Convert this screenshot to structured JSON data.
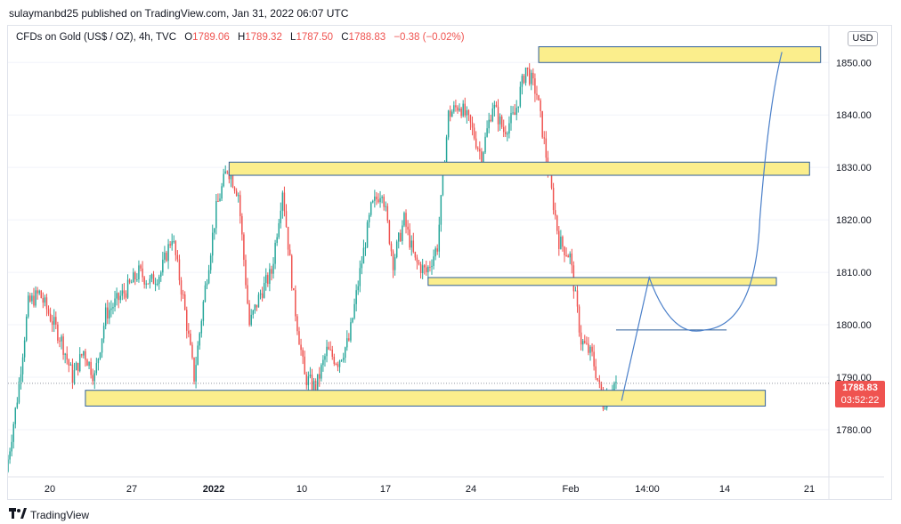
{
  "header": {
    "publisher_line": "sulaymanbd25 published on TradingView.com, Jan 31, 2022 06:07 UTC"
  },
  "legend": {
    "symbol": "CFDs on Gold (US$ / OZ), 4h, TVC",
    "open_label": "O",
    "open": "1789.06",
    "high_label": "H",
    "high": "1789.32",
    "low_label": "L",
    "low": "1787.50",
    "close_label": "C",
    "close": "1788.83",
    "change": "−0.38 (−0.02%)"
  },
  "currency": "USD",
  "price_tag": {
    "price": "1788.83",
    "countdown": "03:52:22",
    "color": "#ef5350"
  },
  "footer": {
    "brand": "TradingView",
    "logo": "tradingview-logo-icon"
  },
  "colors": {
    "up": "#26a69a",
    "down": "#ef5350",
    "zone_fill": "#fbee8c",
    "zone_stroke": "#2f5f9b",
    "projection": "#4a7fc9"
  },
  "chart_data": {
    "type": "candlestick",
    "instrument": "CFDs on Gold (US$ / OZ)",
    "timeframe": "4h",
    "y_axis": {
      "ticks": [
        1780,
        1790,
        1800,
        1810,
        1820,
        1830,
        1840,
        1850
      ],
      "tick_labels": [
        "1780.00",
        "1790.00",
        "1800.00",
        "1810.00",
        "1820.00",
        "1830.00",
        "1840.00",
        "1850.00"
      ],
      "range": [
        1771,
        1857
      ]
    },
    "x_axis": {
      "tick_labels": [
        "20",
        "27",
        "2022",
        "10",
        "17",
        "24",
        "Feb",
        "14:00",
        "14",
        "21"
      ]
    },
    "path": [
      [
        "2021-12-15 00:00",
        1772
      ],
      [
        "2021-12-16 00:00",
        1786
      ],
      [
        "2021-12-17 00:00",
        1804
      ],
      [
        "2021-12-18 00:00",
        1806
      ],
      [
        "2021-12-20 00:00",
        1797
      ],
      [
        "2021-12-21 00:00",
        1790
      ],
      [
        "2021-12-22 00:00",
        1795
      ],
      [
        "2021-12-23 00:00",
        1790
      ],
      [
        "2021-12-24 00:00",
        1802
      ],
      [
        "2021-12-26 00:00",
        1807
      ],
      [
        "2021-12-27 00:00",
        1810
      ],
      [
        "2021-12-28 00:00",
        1808
      ],
      [
        "2021-12-29 00:00",
        1810
      ],
      [
        "2021-12-30 00:00",
        1817
      ],
      [
        "2021-12-31 00:00",
        1805
      ],
      [
        "2022-01-01 00:00",
        1790
      ],
      [
        "2022-01-02 00:00",
        1807
      ],
      [
        "2022-01-03 00:00",
        1822
      ],
      [
        "2022-01-04 00:00",
        1830
      ],
      [
        "2022-01-05 00:00",
        1825
      ],
      [
        "2022-01-06 00:00",
        1800
      ],
      [
        "2022-01-07 00:00",
        1806
      ],
      [
        "2022-01-08 00:00",
        1810
      ],
      [
        "2022-01-09 00:00",
        1826
      ],
      [
        "2022-01-10 00:00",
        1805
      ],
      [
        "2022-01-11 00:00",
        1790
      ],
      [
        "2022-01-12 00:00",
        1788
      ],
      [
        "2022-01-13 00:00",
        1795
      ],
      [
        "2022-01-14 00:00",
        1793
      ],
      [
        "2022-01-15 00:00",
        1797
      ],
      [
        "2022-01-16 00:00",
        1810
      ],
      [
        "2022-01-17 00:00",
        1822
      ],
      [
        "2022-01-18 00:00",
        1826
      ],
      [
        "2022-01-19 00:00",
        1812
      ],
      [
        "2022-01-20 00:00",
        1820
      ],
      [
        "2022-01-21 00:00",
        1812
      ],
      [
        "2022-01-22 00:00",
        1810
      ],
      [
        "2022-01-23 00:00",
        1815
      ],
      [
        "2022-01-24 00:00",
        1840
      ],
      [
        "2022-01-25 00:00",
        1842
      ],
      [
        "2022-01-26 00:00",
        1838
      ],
      [
        "2022-01-27 00:00",
        1832
      ],
      [
        "2022-01-28 00:00",
        1842
      ],
      [
        "2022-01-29 00:00",
        1837
      ],
      [
        "2022-01-30 00:00",
        1840
      ],
      [
        "2022-01-31 00:00",
        1849
      ],
      [
        "2022-02-01 00:00",
        1844
      ],
      [
        "2022-02-02 00:00",
        1830
      ],
      [
        "2022-02-03 00:00",
        1816
      ],
      [
        "2022-02-04 00:00",
        1813
      ],
      [
        "2022-02-05 00:00",
        1797
      ],
      [
        "2022-02-06 00:00",
        1794
      ],
      [
        "2022-02-07 00:00",
        1785
      ],
      [
        "2022-02-08 00:00",
        1788.83
      ]
    ],
    "zones": [
      {
        "from": "2022-02-01 00:00",
        "to": "2022-02-26 12:00",
        "low": 1850,
        "high": 1853
      },
      {
        "from": "2022-01-04 00:00",
        "to": "2022-02-25 12:00",
        "low": 1828.5,
        "high": 1831
      },
      {
        "from": "2022-01-22 00:00",
        "to": "2022-02-22 12:00",
        "low": 1807.5,
        "high": 1809
      },
      {
        "from": "2021-12-22 00:00",
        "to": "2022-02-21 12:00",
        "low": 1784.5,
        "high": 1787.5
      }
    ],
    "horizontal_line": {
      "from": "2022-02-08 00:00",
      "to": "2022-02-18 00:00",
      "price": 1799
    },
    "projection": [
      [
        "2022-02-08 12:00",
        1785.5
      ],
      [
        "2022-02-11 00:00",
        1809
      ],
      [
        "2022-02-16 00:00",
        1799
      ],
      [
        "2022-02-21 00:00",
        1820
      ],
      [
        "2022-02-23 00:00",
        1852
      ]
    ],
    "current_price": 1788.83
  }
}
